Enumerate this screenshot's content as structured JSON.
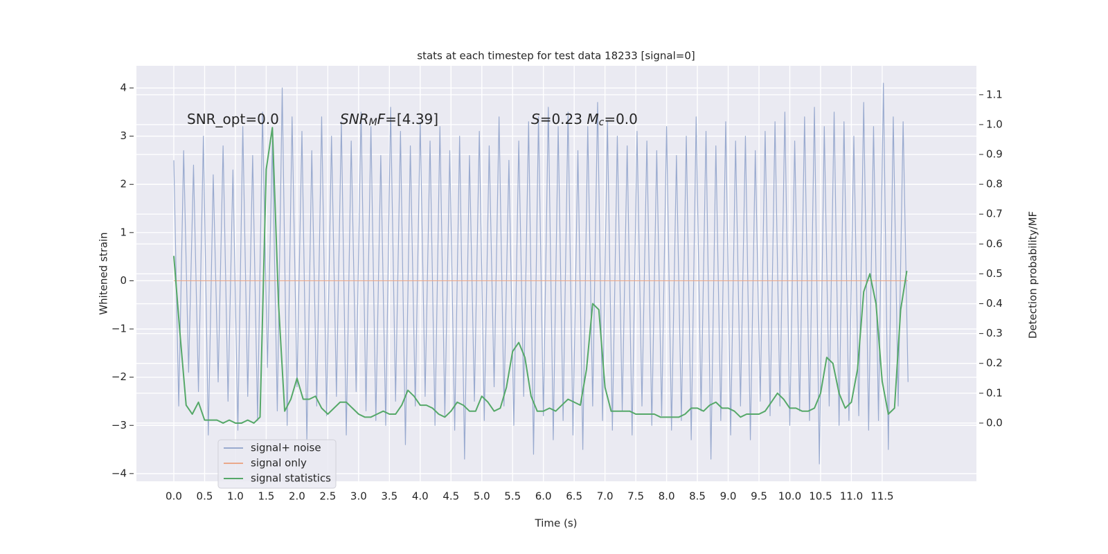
{
  "chart_data": {
    "type": "line",
    "title": "stats at each timestep for test data 18233 [signal=0]",
    "xlabel": "Time (s)",
    "ylabel": "Whitened strain",
    "y2label": "Detection probability/MF",
    "xlim": [
      -0.607,
      13.03
    ],
    "ylim": [
      -4.16,
      4.46
    ],
    "y2lim": [
      -0.195,
      1.197
    ],
    "xticks": [
      {
        "value": 0,
        "label": "0.0"
      },
      0.5,
      {
        "value": 1,
        "label": "1.0"
      },
      1.5,
      {
        "value": 2,
        "label": "2.0"
      },
      2.5,
      {
        "value": 3,
        "label": "3.0"
      },
      3.5,
      {
        "value": 4,
        "label": "4.0"
      },
      4.5,
      {
        "value": 5,
        "label": "5.0"
      },
      5.5,
      {
        "value": 6,
        "label": "6.0"
      },
      6.5,
      {
        "value": 7,
        "label": "7.0"
      },
      7.5,
      {
        "value": 8,
        "label": "8.0"
      },
      8.5,
      {
        "value": 9,
        "label": "9.0"
      },
      9.5,
      {
        "value": 10,
        "label": "10.0"
      },
      10.5,
      {
        "value": 11,
        "label": "11.0"
      },
      11.5
    ],
    "yticks": [
      {
        "value": -4,
        "label": "−4"
      },
      {
        "value": -3,
        "label": "−3"
      },
      {
        "value": -2,
        "label": "−2"
      },
      {
        "value": -1,
        "label": "−1"
      },
      0,
      1,
      2,
      3,
      4
    ],
    "y2ticks": [
      {
        "value": 0,
        "label": "0.0"
      },
      0.1,
      0.2,
      0.3,
      0.4,
      0.5,
      0.6,
      0.7,
      0.8,
      0.9,
      {
        "value": 1,
        "label": "1.0"
      },
      1.1
    ],
    "grid": true,
    "legend": "lower left",
    "annotations": [
      [
        {
          "text": "SNR_opt=0.0",
          "style": "normal"
        }
      ],
      [
        {
          "text": "SNR",
          "style": "italic"
        },
        {
          "text": "M",
          "style": "sub"
        },
        {
          "text": "F",
          "style": "italic"
        },
        {
          "text": "=[4.39]",
          "style": "normal"
        }
      ],
      [
        {
          "text": "S",
          "style": "italic"
        },
        {
          "text": "=0.23   ",
          "style": "normal"
        },
        {
          "text": "M",
          "style": "italic"
        },
        {
          "text": "c",
          "style": "sub"
        },
        {
          "text": "=0.0",
          "style": "normal"
        }
      ]
    ],
    "series": [
      {
        "name": "signal+ noise",
        "color": "#99aacf",
        "axis": "y",
        "x": [
          0,
          0.08,
          0.16,
          0.24,
          0.32,
          0.4,
          0.48,
          0.56,
          0.64,
          0.72,
          0.8,
          0.88,
          0.96,
          1.04,
          1.12,
          1.2,
          1.28,
          1.36,
          1.44,
          1.52,
          1.6,
          1.68,
          1.76,
          1.84,
          1.92,
          2,
          2.08,
          2.16,
          2.24,
          2.32,
          2.4,
          2.48,
          2.56,
          2.64,
          2.72,
          2.8,
          2.88,
          2.96,
          3.04,
          3.12,
          3.2,
          3.28,
          3.36,
          3.44,
          3.52,
          3.6,
          3.68,
          3.76,
          3.84,
          3.92,
          4,
          4.08,
          4.16,
          4.24,
          4.32,
          4.4,
          4.48,
          4.56,
          4.64,
          4.72,
          4.8,
          4.88,
          4.96,
          5.04,
          5.12,
          5.2,
          5.28,
          5.36,
          5.44,
          5.52,
          5.6,
          5.68,
          5.76,
          5.84,
          5.92,
          6,
          6.08,
          6.16,
          6.24,
          6.32,
          6.4,
          6.48,
          6.56,
          6.64,
          6.72,
          6.8,
          6.88,
          6.96,
          7.04,
          7.12,
          7.2,
          7.28,
          7.36,
          7.44,
          7.52,
          7.6,
          7.68,
          7.76,
          7.84,
          7.92,
          8,
          8.08,
          8.16,
          8.24,
          8.32,
          8.4,
          8.48,
          8.56,
          8.64,
          8.72,
          8.8,
          8.88,
          8.96,
          9.04,
          9.12,
          9.2,
          9.28,
          9.36,
          9.44,
          9.52,
          9.6,
          9.68,
          9.76,
          9.84,
          9.92,
          10,
          10.08,
          10.16,
          10.24,
          10.32,
          10.4,
          10.48,
          10.56,
          10.64,
          10.72,
          10.8,
          10.88,
          10.96,
          11.04,
          11.12,
          11.2,
          11.28,
          11.36,
          11.44,
          11.52,
          11.6,
          11.68,
          11.76,
          11.84,
          11.92
        ],
        "values": [
          2.5,
          -2.6,
          2.7,
          -1.9,
          2.4,
          -2.3,
          3.0,
          -3.2,
          2.2,
          -2.1,
          2.8,
          -2.5,
          2.3,
          -3.1,
          3.2,
          -2.4,
          2.6,
          -2.9,
          3.5,
          -1.8,
          2.9,
          -2.7,
          4.0,
          -3.0,
          3.4,
          -2.2,
          3.1,
          -3.3,
          2.7,
          -2.6,
          3.4,
          -2.8,
          3.0,
          -2.4,
          3.3,
          -3.2,
          2.9,
          -2.3,
          3.5,
          -2.7,
          3.2,
          -2.9,
          2.6,
          -3.0,
          3.6,
          -2.5,
          3.1,
          -3.4,
          2.8,
          -2.6,
          3.3,
          -2.4,
          2.9,
          -3.0,
          3.2,
          -2.8,
          2.7,
          -3.1,
          3.0,
          -3.7,
          2.6,
          -2.5,
          3.1,
          -2.9,
          2.8,
          -2.2,
          3.4,
          -2.6,
          2.5,
          -3.0,
          2.9,
          -2.4,
          3.3,
          -3.6,
          3.4,
          -2.8,
          3.6,
          -3.3,
          3.2,
          -2.9,
          3.5,
          -3.2,
          2.7,
          -3.5,
          3.2,
          -2.6,
          3.7,
          -2.9,
          3.3,
          -3.1,
          3.0,
          -2.7,
          2.8,
          -3.2,
          3.1,
          -2.6,
          2.9,
          -3.0,
          2.7,
          -2.8,
          3.2,
          -3.1,
          2.6,
          -2.9,
          3.0,
          -3.3,
          3.4,
          -2.7,
          3.1,
          -3.7,
          2.8,
          -2.9,
          3.3,
          -3.2,
          2.9,
          -2.6,
          3.0,
          -3.3,
          2.7,
          -2.5,
          3.1,
          -2.8,
          3.3,
          -2.6,
          3.5,
          -3.0,
          2.9,
          -2.7,
          3.4,
          -2.9,
          3.6,
          -3.8,
          3.2,
          -2.6,
          3.5,
          -3.0,
          3.3,
          -2.9,
          3.0,
          -2.8,
          3.7,
          -3.1,
          3.2,
          -2.9,
          4.1,
          -3.5,
          3.4,
          -2.6,
          3.3,
          -2.1
        ]
      },
      {
        "name": "signal only",
        "color": "#eaa88a",
        "axis": "y",
        "x": [
          0,
          11.92
        ],
        "values": [
          0,
          0
        ]
      },
      {
        "name": "signal statistics",
        "color": "#55a868",
        "axis": "y2",
        "x": [
          0,
          0.1,
          0.2,
          0.3,
          0.4,
          0.5,
          0.6,
          0.7,
          0.8,
          0.9,
          1,
          1.1,
          1.2,
          1.3,
          1.4,
          1.5,
          1.6,
          1.7,
          1.8,
          1.9,
          2,
          2.1,
          2.2,
          2.3,
          2.4,
          2.5,
          2.6,
          2.7,
          2.8,
          2.9,
          3,
          3.1,
          3.2,
          3.3,
          3.4,
          3.5,
          3.6,
          3.7,
          3.8,
          3.9,
          4,
          4.1,
          4.2,
          4.3,
          4.4,
          4.5,
          4.6,
          4.7,
          4.8,
          4.9,
          5,
          5.1,
          5.2,
          5.3,
          5.4,
          5.5,
          5.6,
          5.7,
          5.8,
          5.9,
          6,
          6.1,
          6.2,
          6.3,
          6.4,
          6.5,
          6.6,
          6.7,
          6.8,
          6.9,
          7,
          7.1,
          7.2,
          7.3,
          7.4,
          7.5,
          7.6,
          7.7,
          7.8,
          7.9,
          8,
          8.1,
          8.2,
          8.3,
          8.4,
          8.5,
          8.6,
          8.7,
          8.8,
          8.9,
          9,
          9.1,
          9.2,
          9.3,
          9.4,
          9.5,
          9.6,
          9.7,
          9.8,
          9.9,
          10,
          10.1,
          10.2,
          10.3,
          10.4,
          10.5,
          10.6,
          10.7,
          10.8,
          10.9,
          11,
          11.1,
          11.2,
          11.3,
          11.4,
          11.5,
          11.6,
          11.7,
          11.8,
          11.9
        ],
        "values": [
          0.56,
          0.3,
          0.06,
          0.03,
          0.07,
          0.01,
          0.01,
          0.01,
          0.0,
          0.01,
          0.0,
          0.0,
          0.01,
          0.0,
          0.02,
          0.85,
          0.99,
          0.4,
          0.04,
          0.08,
          0.15,
          0.08,
          0.08,
          0.09,
          0.05,
          0.03,
          0.05,
          0.07,
          0.07,
          0.05,
          0.03,
          0.02,
          0.02,
          0.03,
          0.04,
          0.03,
          0.03,
          0.06,
          0.11,
          0.09,
          0.06,
          0.06,
          0.05,
          0.03,
          0.02,
          0.04,
          0.07,
          0.06,
          0.04,
          0.04,
          0.09,
          0.07,
          0.04,
          0.05,
          0.12,
          0.24,
          0.27,
          0.22,
          0.09,
          0.04,
          0.04,
          0.05,
          0.04,
          0.06,
          0.08,
          0.07,
          0.06,
          0.18,
          0.4,
          0.38,
          0.12,
          0.04,
          0.04,
          0.04,
          0.04,
          0.03,
          0.03,
          0.03,
          0.03,
          0.02,
          0.02,
          0.02,
          0.02,
          0.03,
          0.05,
          0.05,
          0.04,
          0.06,
          0.07,
          0.05,
          0.05,
          0.04,
          0.02,
          0.03,
          0.03,
          0.03,
          0.04,
          0.07,
          0.1,
          0.08,
          0.05,
          0.05,
          0.04,
          0.04,
          0.05,
          0.1,
          0.22,
          0.2,
          0.1,
          0.05,
          0.07,
          0.18,
          0.44,
          0.5,
          0.4,
          0.14,
          0.03,
          0.05,
          0.38,
          0.51
        ]
      }
    ]
  }
}
